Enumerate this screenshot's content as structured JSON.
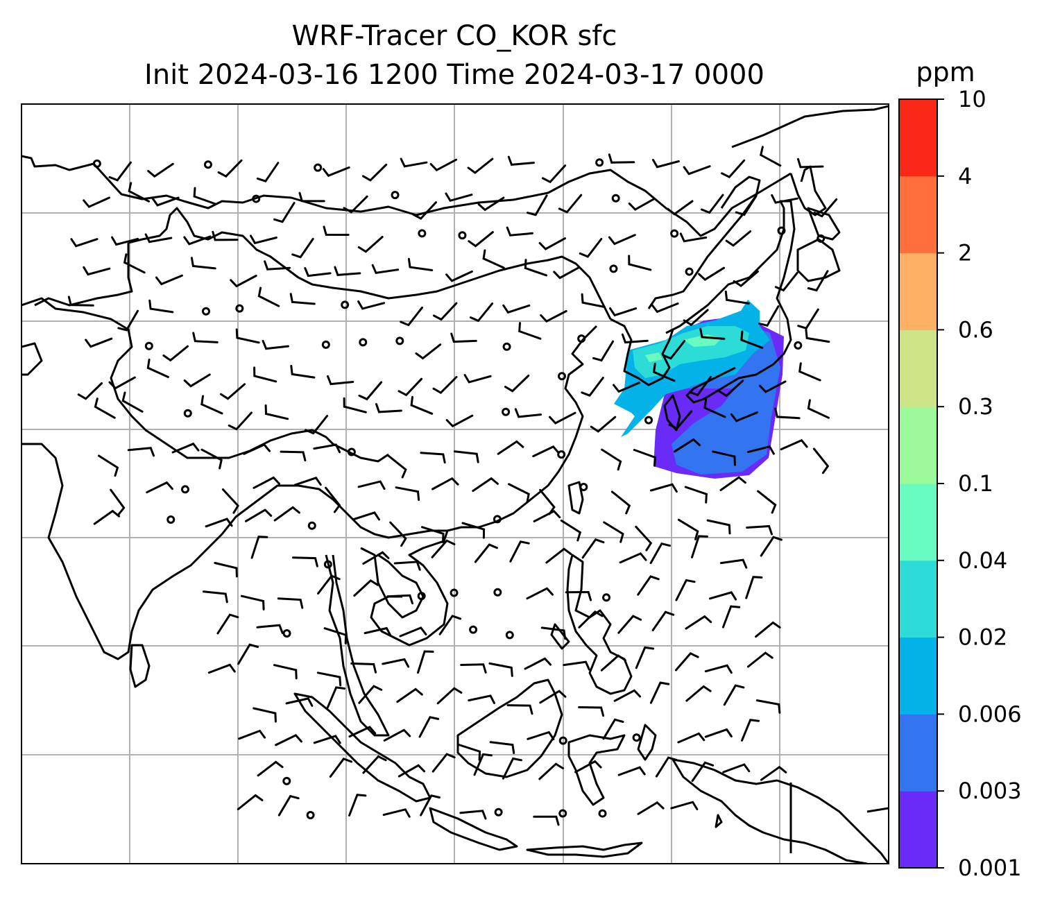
{
  "title": {
    "line1": "WRF-Tracer CO_KOR sfc",
    "line2": "Init 2024-03-16 1200 Time 2024-03-17 0000"
  },
  "colorbar": {
    "unit": "ppm",
    "levels": [
      "0.001",
      "0.003",
      "0.006",
      "0.02",
      "0.04",
      "0.1",
      "0.3",
      "0.6",
      "2",
      "4",
      "10"
    ],
    "colors": [
      "#6a2bf8",
      "#3375f1",
      "#04b2ea",
      "#2ddbd7",
      "#68fbc0",
      "#9bf99a",
      "#cee388",
      "#feb164",
      "#fe6f3c",
      "#fc2817"
    ]
  },
  "map": {
    "gridlines": true,
    "tracer_colors": {
      "lowest": "#6a2bf8",
      "low": "#3375f1",
      "mid": "#04b2ea",
      "high": "#2ddbd7"
    },
    "calm_wind_symbol": "circle-icon",
    "wind_symbol": "wind-barb-icon"
  }
}
